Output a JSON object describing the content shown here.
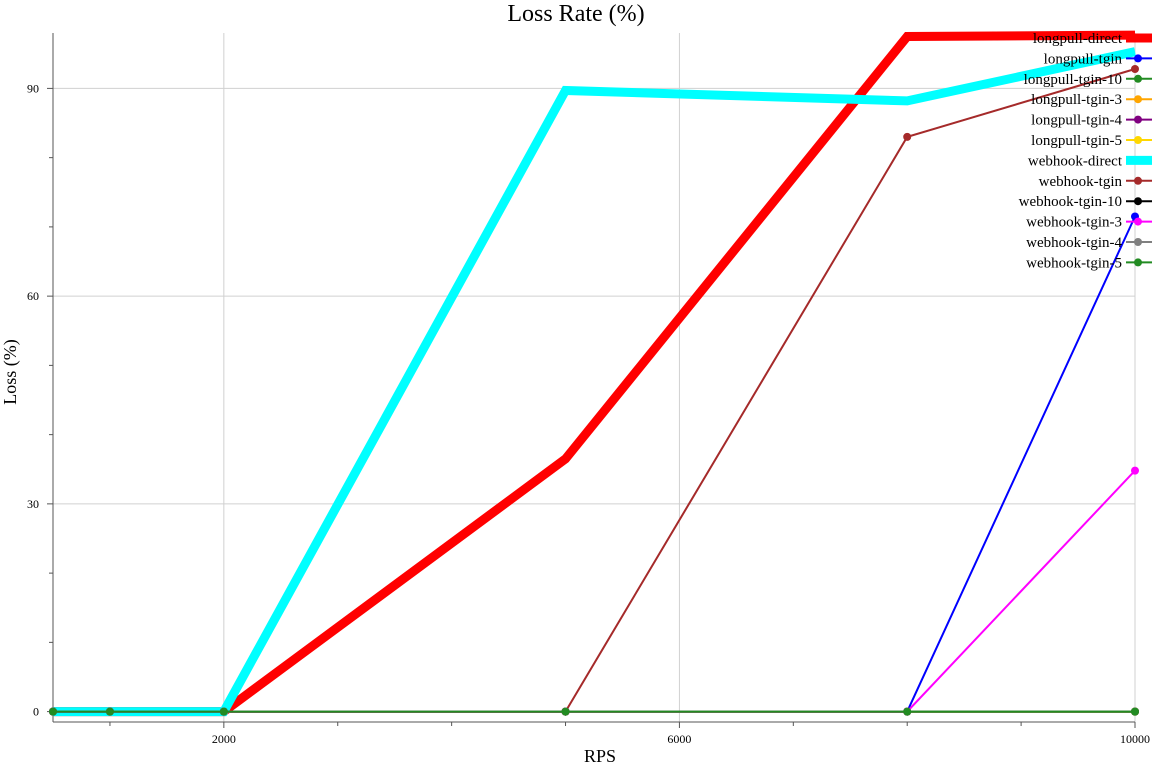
{
  "chart_data": {
    "type": "line",
    "title": "Loss Rate (%)",
    "xlabel": "RPS",
    "ylabel": "Loss (%)",
    "xlim": [
      500,
      10000
    ],
    "ylim": [
      -1.5,
      98
    ],
    "x_ticks": [
      2000,
      6000,
      10000
    ],
    "x_minor_ticks": [
      1000,
      3000,
      4000,
      5000,
      7000,
      8000,
      9000
    ],
    "y_ticks": [
      0,
      30,
      60,
      90
    ],
    "grid": true,
    "legend_position": "top-right",
    "series": [
      {
        "name": "longpull-direct",
        "color": "#ff0000",
        "width": 9,
        "marker": false,
        "x": [
          500,
          1000,
          2000,
          5000,
          8000,
          10000
        ],
        "y": [
          0,
          0,
          0,
          36.5,
          97.5,
          97.7
        ]
      },
      {
        "name": "longpull-tgin",
        "color": "#0000ff",
        "width": 2,
        "marker": true,
        "x": [
          500,
          1000,
          2000,
          5000,
          8000,
          10000
        ],
        "y": [
          0,
          0,
          0,
          0,
          0,
          71.5
        ]
      },
      {
        "name": "longpull-tgin-10",
        "color": "#228b22",
        "width": 2,
        "marker": true,
        "x": [
          500,
          1000,
          2000,
          5000,
          8000,
          10000
        ],
        "y": [
          0,
          0,
          0,
          0,
          0,
          0
        ]
      },
      {
        "name": "longpull-tgin-3",
        "color": "#ffa500",
        "width": 2,
        "marker": true,
        "x": [
          500,
          1000,
          2000,
          5000,
          8000,
          10000
        ],
        "y": [
          0,
          0,
          0,
          0,
          0,
          0
        ]
      },
      {
        "name": "longpull-tgin-4",
        "color": "#800080",
        "width": 2,
        "marker": true,
        "x": [
          500,
          1000,
          2000,
          5000,
          8000,
          10000
        ],
        "y": [
          0,
          0,
          0,
          0,
          0,
          0
        ]
      },
      {
        "name": "longpull-tgin-5",
        "color": "#ffd700",
        "width": 2,
        "marker": true,
        "x": [
          500,
          1000,
          2000,
          5000,
          8000,
          10000
        ],
        "y": [
          0,
          0,
          0,
          0,
          0,
          0
        ]
      },
      {
        "name": "webhook-direct",
        "color": "#00ffff",
        "width": 9,
        "marker": false,
        "x": [
          500,
          1000,
          2000,
          5000,
          8000,
          10000
        ],
        "y": [
          0,
          0,
          0,
          89.7,
          88.2,
          95.3
        ]
      },
      {
        "name": "webhook-tgin",
        "color": "#a52a2a",
        "width": 2,
        "marker": true,
        "x": [
          500,
          1000,
          2000,
          5000,
          8000,
          10000
        ],
        "y": [
          0,
          0,
          0,
          0,
          83,
          92.8
        ]
      },
      {
        "name": "webhook-tgin-10",
        "color": "#000000",
        "width": 2,
        "marker": true,
        "x": [
          500,
          1000,
          2000,
          5000,
          8000,
          10000
        ],
        "y": [
          0,
          0,
          0,
          0,
          0,
          0
        ]
      },
      {
        "name": "webhook-tgin-3",
        "color": "#ff00ff",
        "width": 2,
        "marker": true,
        "x": [
          500,
          1000,
          2000,
          5000,
          8000,
          10000
        ],
        "y": [
          0,
          0,
          0,
          0,
          0,
          34.8
        ]
      },
      {
        "name": "webhook-tgin-4",
        "color": "#808080",
        "width": 2,
        "marker": true,
        "x": [
          500,
          1000,
          2000,
          5000,
          8000,
          10000
        ],
        "y": [
          0,
          0,
          0,
          0,
          0,
          0
        ]
      },
      {
        "name": "webhook-tgin-5",
        "color": "#228b22",
        "width": 2,
        "marker": true,
        "x": [
          500,
          1000,
          2000,
          5000,
          8000,
          10000
        ],
        "y": [
          0,
          0,
          0,
          0,
          0,
          0
        ]
      }
    ]
  }
}
